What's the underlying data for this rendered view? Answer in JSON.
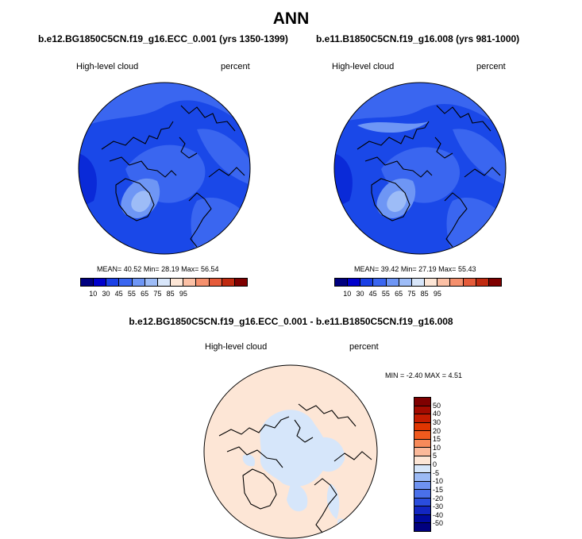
{
  "title": "ANN",
  "panels": [
    {
      "case": "b.e12.BG1850C5CN.f19_g16.ECC_0.001 (yrs 1350-1399)",
      "variable": "High-level cloud",
      "units": "percent",
      "mean_label": "MEAN=",
      "mean": "40.52",
      "min_label": "Min=",
      "min": "28.19",
      "max_label": "Max=",
      "max": "56.54"
    },
    {
      "case": "b.e11.B1850C5CN.f19_g16.008 (yrs 981-1000)",
      "variable": "High-level cloud",
      "units": "percent",
      "mean_label": "MEAN=",
      "mean": "39.42",
      "min_label": "Min=",
      "min": "27.19",
      "max_label": "Max=",
      "max": "55.43"
    }
  ],
  "colorbar": {
    "ticks": [
      "10",
      "30",
      "45",
      "55",
      "65",
      "75",
      "85",
      "95"
    ],
    "colors": [
      "#00007f",
      "#0000cc",
      "#1a40e6",
      "#3a66f0",
      "#6e96f5",
      "#9dbcf7",
      "#d8e6fa",
      "#fde6d6",
      "#fbc0a5",
      "#f5906d",
      "#e55b3a",
      "#c02a10",
      "#7f0000"
    ]
  },
  "diff": {
    "title": "b.e12.BG1850C5CN.f19_g16.ECC_0.001 - b.e11.B1850C5CN.f19_g16.008",
    "variable": "High-level cloud",
    "units": "percent",
    "minmax": "MIN = -2.40 MAX =   4.51",
    "ticks": [
      "50",
      "40",
      "30",
      "20",
      "15",
      "10",
      "5",
      "0",
      "-5",
      "-10",
      "-15",
      "-20",
      "-30",
      "-40",
      "-50"
    ],
    "colors": [
      "#7f0000",
      "#a30b00",
      "#c41c00",
      "#e03500",
      "#f05a1e",
      "#f78a5a",
      "#fbb99a",
      "#fde6d6",
      "#d6e6fa",
      "#9bbaf5",
      "#6e92f0",
      "#4a70ea",
      "#2a4ddd",
      "#1226c2",
      "#000a9e",
      "#00007f"
    ]
  }
}
